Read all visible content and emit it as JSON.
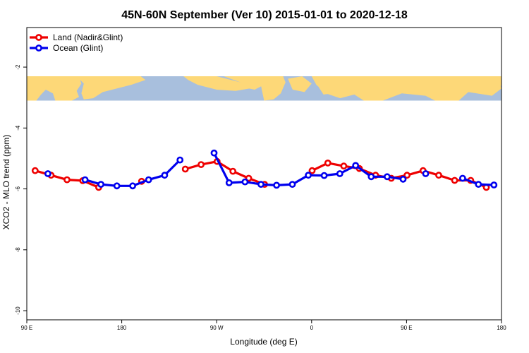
{
  "chart_data": {
    "type": "line",
    "title": "45N-60N September (Ver 10)   2015-01-01 to 2020-12-18",
    "xlabel": "Longitude (deg E)",
    "ylabel": "XCO2 - MLO trend (ppm)",
    "xlim": [
      90,
      450
    ],
    "ylim": [
      -10.3,
      -0.7
    ],
    "x_ticks": [
      {
        "value": 90,
        "label": "90 E"
      },
      {
        "value": 162,
        "label": "180"
      },
      {
        "value": 234,
        "label": "90 W"
      },
      {
        "value": 306,
        "label": "0"
      },
      {
        "value": 378,
        "label": "90 E"
      },
      {
        "value": 450,
        "label": "180"
      }
    ],
    "y_ticks": [
      {
        "value": -2,
        "label": "-2"
      },
      {
        "value": -4,
        "label": "-4"
      },
      {
        "value": -6,
        "label": "-6"
      },
      {
        "value": -8,
        "label": "-8"
      },
      {
        "value": -10,
        "label": "-10"
      }
    ],
    "map_band": {
      "y_top": -2.3,
      "y_bottom": -3.1,
      "ocean_color": "#a8bfdd",
      "land_color": "#fdd878"
    },
    "legend": {
      "position": "top-left"
    },
    "series": [
      {
        "name": "Land (Nadir&Glint)",
        "color": "#ee0000",
        "segments": [
          [
            [
              96.3,
              -5.4
            ],
            [
              108.4,
              -5.55
            ],
            [
              120.5,
              -5.7
            ],
            [
              132.4,
              -5.73
            ],
            [
              144.5,
              -5.95
            ]
          ],
          [
            [
              177.1,
              -5.75
            ]
          ],
          [
            [
              210.2,
              -5.35
            ],
            [
              222.2,
              -5.2
            ],
            [
              234.3,
              -5.1
            ],
            [
              246.3,
              -5.42
            ],
            [
              258.3,
              -5.65
            ],
            [
              270.3,
              -5.85
            ]
          ],
          [
            [
              306.4,
              -5.4
            ],
            [
              318.3,
              -5.15
            ],
            [
              330.4,
              -5.25
            ],
            [
              342.2,
              -5.33
            ],
            [
              354.5,
              -5.55
            ],
            [
              366.4,
              -5.65
            ],
            [
              378.4,
              -5.55
            ],
            [
              390.5,
              -5.4
            ],
            [
              402.4,
              -5.55
            ],
            [
              414.5,
              -5.72
            ],
            [
              426.6,
              -5.72
            ],
            [
              438.5,
              -5.95
            ]
          ]
        ]
      },
      {
        "name": "Ocean (Glint)",
        "color": "#0000ee",
        "segments": [
          [
            [
              106.0,
              -5.5
            ]
          ],
          [
            [
              134.2,
              -5.7
            ],
            [
              146.2,
              -5.85
            ],
            [
              158.3,
              -5.9
            ],
            [
              170.3,
              -5.9
            ],
            [
              182.4,
              -5.7
            ],
            [
              194.5,
              -5.55
            ],
            [
              206.2,
              -5.05
            ]
          ],
          [
            [
              232.0,
              -4.82
            ],
            [
              243.4,
              -5.8
            ],
            [
              255.5,
              -5.77
            ],
            [
              267.6,
              -5.85
            ],
            [
              279.4,
              -5.88
            ],
            [
              291.4,
              -5.85
            ],
            [
              303.5,
              -5.55
            ],
            [
              315.5,
              -5.56
            ],
            [
              327.4,
              -5.5
            ],
            [
              339.4,
              -5.23
            ],
            [
              351.2,
              -5.6
            ],
            [
              363.3,
              -5.6
            ],
            [
              375.4,
              -5.68
            ]
          ],
          [
            [
              392.5,
              -5.5
            ]
          ],
          [
            [
              420.5,
              -5.65
            ],
            [
              432.5,
              -5.85
            ],
            [
              444.3,
              -5.87
            ]
          ]
        ]
      }
    ]
  }
}
